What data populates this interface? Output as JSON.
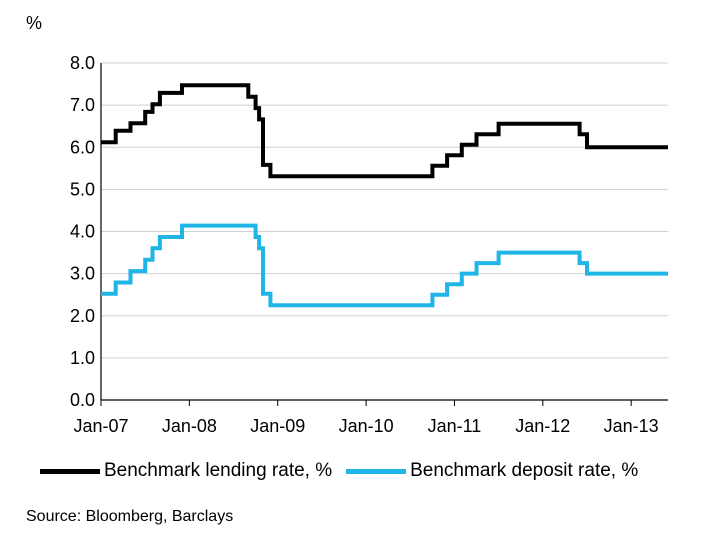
{
  "chart_data": {
    "type": "line",
    "unit_label": "%",
    "ylim": [
      0,
      8
    ],
    "yticks": [
      "0.0",
      "1.0",
      "2.0",
      "3.0",
      "4.0",
      "5.0",
      "6.0",
      "7.0",
      "8.0"
    ],
    "xlim": [
      "2007-01",
      "2013-06"
    ],
    "xticks": [
      "Jan-07",
      "Jan-08",
      "Jan-09",
      "Jan-10",
      "Jan-11",
      "Jan-12",
      "Jan-13"
    ],
    "grid": true,
    "legend_position": "bottom",
    "series": [
      {
        "name": "Benchmark lending rate, %",
        "color": "#000000",
        "step": true,
        "points": [
          [
            "2007-01",
            6.12
          ],
          [
            "2007-03",
            6.39
          ],
          [
            "2007-05",
            6.57
          ],
          [
            "2007-07",
            6.84
          ],
          [
            "2007-08",
            7.02
          ],
          [
            "2007-09",
            7.29
          ],
          [
            "2007-12",
            7.47
          ],
          [
            "2008-09",
            7.2
          ],
          [
            "2008-10",
            6.93
          ],
          [
            "2008-10-15",
            6.66
          ],
          [
            "2008-11",
            5.58
          ],
          [
            "2008-12",
            5.31
          ],
          [
            "2010-10",
            5.56
          ],
          [
            "2010-12",
            5.81
          ],
          [
            "2011-02",
            6.06
          ],
          [
            "2011-04",
            6.31
          ],
          [
            "2011-07",
            6.56
          ],
          [
            "2012-06",
            6.31
          ],
          [
            "2012-07",
            6.0
          ],
          [
            "2013-06",
            6.0
          ]
        ]
      },
      {
        "name": "Benchmark deposit rate, %",
        "color": "#1fb5e6",
        "step": true,
        "points": [
          [
            "2007-01",
            2.52
          ],
          [
            "2007-03",
            2.79
          ],
          [
            "2007-05",
            3.06
          ],
          [
            "2007-07",
            3.33
          ],
          [
            "2007-08",
            3.6
          ],
          [
            "2007-09",
            3.87
          ],
          [
            "2007-12",
            4.14
          ],
          [
            "2008-10",
            3.87
          ],
          [
            "2008-10-15",
            3.6
          ],
          [
            "2008-11",
            2.52
          ],
          [
            "2008-12",
            2.25
          ],
          [
            "2010-10",
            2.5
          ],
          [
            "2010-12",
            2.75
          ],
          [
            "2011-02",
            3.0
          ],
          [
            "2011-04",
            3.25
          ],
          [
            "2011-07",
            3.5
          ],
          [
            "2012-06",
            3.25
          ],
          [
            "2012-07",
            3.0
          ],
          [
            "2013-06",
            3.0
          ]
        ]
      }
    ]
  },
  "source": "Source: Bloomberg, Barclays"
}
